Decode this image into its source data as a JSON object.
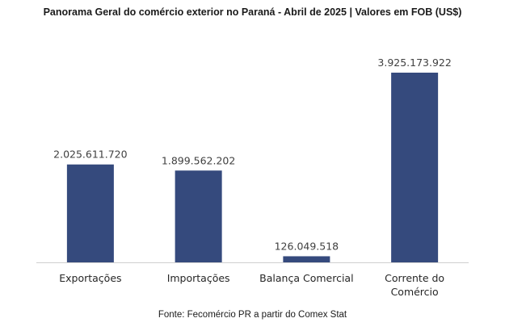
{
  "chart_data": {
    "type": "bar",
    "title": "Panorama Geral do comércio exterior no Paraná - Abril de 2025 | Valores em FOB (US$)",
    "categories": [
      [
        "Exportações"
      ],
      [
        "Importações"
      ],
      [
        "Balança Comercial"
      ],
      [
        "Corrente do",
        "Comércio"
      ]
    ],
    "values": [
      2025611720,
      1899562202,
      126049518,
      3925173922
    ],
    "data_labels": [
      "2.025.611.720",
      "1.899.562.202",
      "126.049.518",
      "3.925.173.922"
    ],
    "bar_color": "#354a7d",
    "xlabel": "",
    "ylabel": "",
    "grid": false
  },
  "source": "Fonte: Fecomércio PR a partir do Comex Stat"
}
